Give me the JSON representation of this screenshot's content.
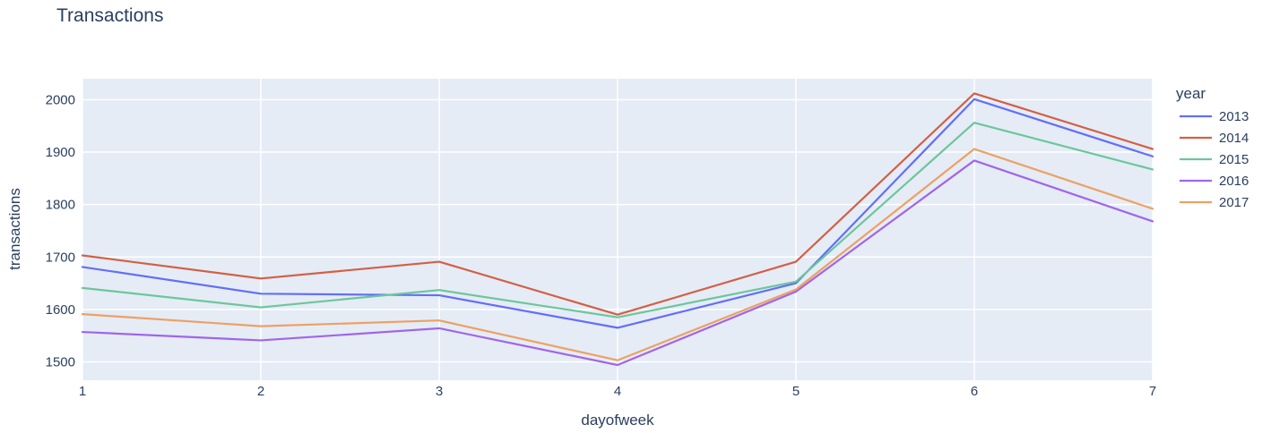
{
  "chart_data": {
    "type": "line",
    "title": "Transactions",
    "xlabel": "dayofweek",
    "ylabel": "transactions",
    "x": [
      1,
      2,
      3,
      4,
      5,
      6,
      7
    ],
    "x_ticks": [
      "1",
      "2",
      "3",
      "4",
      "5",
      "6",
      "7"
    ],
    "y_ticks": [
      "1500",
      "1600",
      "1700",
      "1800",
      "1900",
      "2000"
    ],
    "xlim": [
      1,
      7
    ],
    "ylim": [
      1465,
      2040
    ],
    "grid": true,
    "legend_title": "year",
    "legend_position": "right",
    "series": [
      {
        "name": "2013",
        "color": "#636efa",
        "values": [
          1681,
          1630,
          1627,
          1565,
          1650,
          2001,
          1892
        ]
      },
      {
        "name": "2014",
        "color": "#d35f45",
        "values": [
          1703,
          1659,
          1691,
          1590,
          1691,
          2012,
          1906
        ]
      },
      {
        "name": "2015",
        "color": "#6cc69b",
        "values": [
          1641,
          1604,
          1637,
          1585,
          1653,
          1956,
          1867
        ]
      },
      {
        "name": "2016",
        "color": "#a065ea",
        "values": [
          1557,
          1541,
          1564,
          1494,
          1634,
          1884,
          1768
        ]
      },
      {
        "name": "2017",
        "color": "#eda163",
        "values": [
          1591,
          1568,
          1579,
          1503,
          1638,
          1906,
          1792
        ]
      }
    ]
  }
}
